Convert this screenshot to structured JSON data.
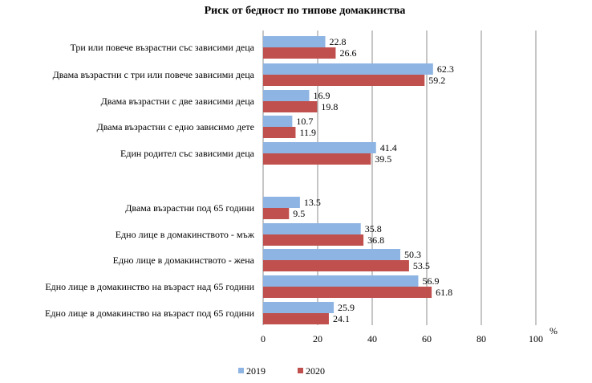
{
  "chart_data": {
    "type": "bar",
    "orientation": "horizontal",
    "title": "Риск от бедност по типове домакинства",
    "unit_label": "%",
    "xlim": [
      0,
      100
    ],
    "xticks": [
      0,
      20,
      40,
      60,
      80,
      100
    ],
    "grid": true,
    "legend_position": "bottom",
    "categories": [
      "Три или повече възрастни със зависими деца",
      "Двама възрастни с три или повече зависими деца",
      "Двама възрастни с две зависими деца",
      "Двама възрастни с едно зависимо дете",
      "Един родител със зависими деца",
      "Двама възрастни под 65 години",
      "Едно лице в домакинството - мъж",
      "Едно лице в домакинството - жена",
      "Едно лице в домакинство на възраст над 65 години",
      "Едно лице в домакинство на възраст под 65 години"
    ],
    "series": [
      {
        "name": "2019",
        "color": "#8eb4e3",
        "values": [
          22.8,
          62.3,
          16.9,
          10.7,
          41.4,
          13.5,
          35.8,
          50.3,
          56.9,
          25.9
        ]
      },
      {
        "name": "2020",
        "color": "#c0504d",
        "values": [
          26.6,
          59.2,
          19.8,
          11.9,
          39.5,
          9.5,
          36.8,
          53.5,
          61.8,
          24.1
        ]
      }
    ]
  }
}
